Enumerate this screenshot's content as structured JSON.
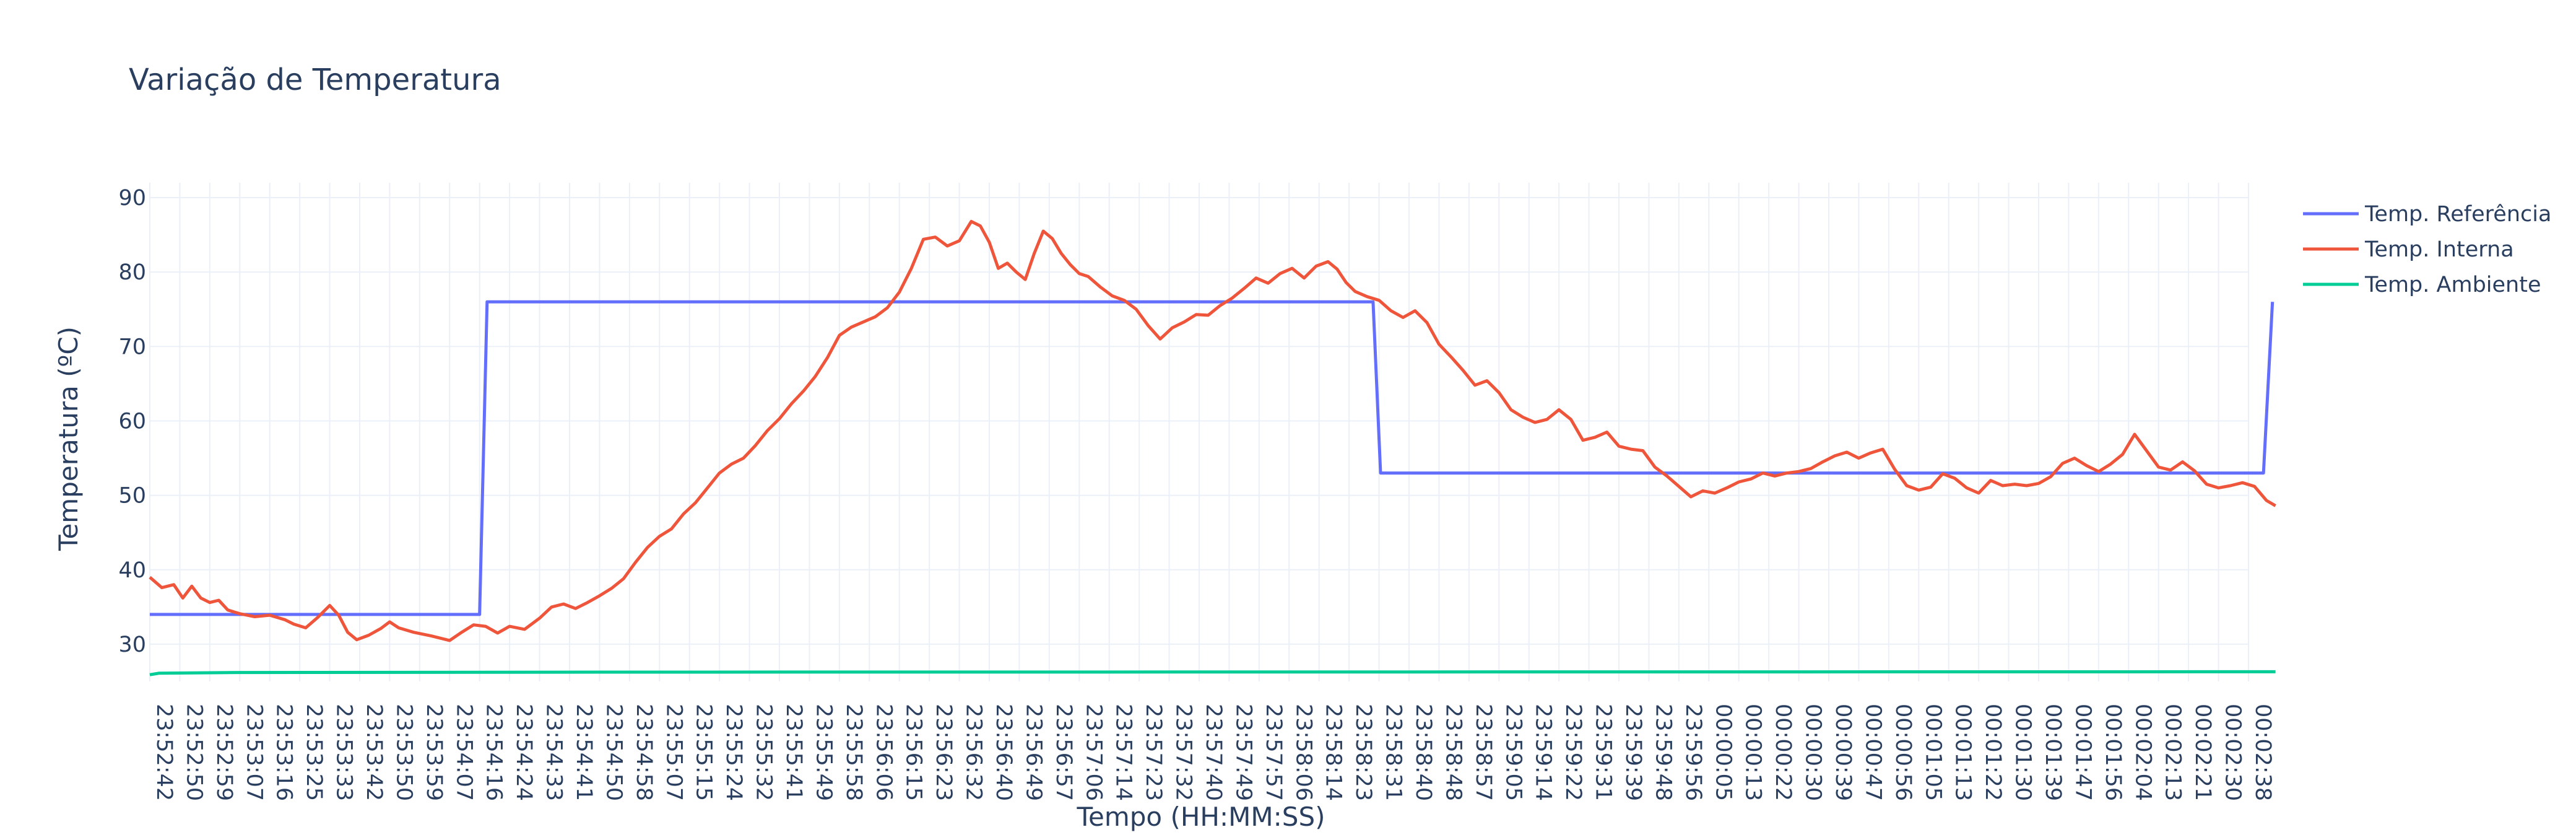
{
  "colors": {
    "background": "#ffffff",
    "grid": "#ebf0f8",
    "text": "#2a3f5f",
    "series": [
      "#636efa",
      "#ef553b",
      "#00cc96"
    ]
  },
  "chart_data": {
    "type": "line",
    "title": "Variação de Temperatura",
    "xlabel": "Tempo (HH:MM:SS)",
    "ylabel": "Temperatura (ºC)",
    "ylim": [
      25,
      92
    ],
    "yticks": [
      30,
      40,
      50,
      60,
      70,
      80,
      90
    ],
    "grid": true,
    "legend_position": "top-right",
    "x_ticks": [
      "23:52:42",
      "23:52:50",
      "23:52:59",
      "23:53:07",
      "23:53:16",
      "23:53:25",
      "23:53:33",
      "23:53:42",
      "23:53:50",
      "23:53:59",
      "23:54:07",
      "23:54:16",
      "23:54:24",
      "23:54:33",
      "23:54:41",
      "23:54:50",
      "23:54:58",
      "23:55:07",
      "23:55:15",
      "23:55:24",
      "23:55:32",
      "23:55:41",
      "23:55:49",
      "23:55:58",
      "23:56:06",
      "23:56:15",
      "23:56:23",
      "23:56:32",
      "23:56:40",
      "23:56:49",
      "23:56:57",
      "23:57:06",
      "23:57:14",
      "23:57:23",
      "23:57:32",
      "23:57:40",
      "23:57:49",
      "23:57:57",
      "23:58:06",
      "23:58:14",
      "23:58:23",
      "23:58:31",
      "23:58:40",
      "23:58:48",
      "23:58:57",
      "23:59:05",
      "23:59:14",
      "23:59:22",
      "23:59:31",
      "23:59:39",
      "23:59:48",
      "23:59:56",
      "00:00:05",
      "00:00:13",
      "00:00:22",
      "00:00:30",
      "00:00:39",
      "00:00:47",
      "00:00:56",
      "00:01:05",
      "00:01:13",
      "00:01:22",
      "00:01:30",
      "00:01:39",
      "00:01:47",
      "00:01:56",
      "00:02:04",
      "00:02:13",
      "00:02:21",
      "00:02:30",
      "00:02:38"
    ],
    "series": [
      {
        "name": "Temp. Referência",
        "color": "#636efa",
        "points": [
          [
            0,
            34
          ],
          [
            11,
            34
          ],
          [
            11.25,
            76
          ],
          [
            40.8,
            76
          ],
          [
            41.05,
            53
          ],
          [
            70.5,
            53
          ],
          [
            70.8,
            76
          ]
        ]
      },
      {
        "name": "Temp. Interna",
        "color": "#ef553b",
        "points": [
          [
            0,
            39
          ],
          [
            0.4,
            37.6
          ],
          [
            0.8,
            38
          ],
          [
            1.1,
            36.2
          ],
          [
            1.4,
            37.8
          ],
          [
            1.7,
            36.2
          ],
          [
            2,
            35.6
          ],
          [
            2.3,
            35.9
          ],
          [
            2.6,
            34.6
          ],
          [
            3,
            34.1
          ],
          [
            3.5,
            33.7
          ],
          [
            4,
            33.9
          ],
          [
            4.5,
            33.3
          ],
          [
            4.8,
            32.7
          ],
          [
            5.2,
            32.2
          ],
          [
            5.6,
            33.6
          ],
          [
            6,
            35.2
          ],
          [
            6.3,
            33.9
          ],
          [
            6.6,
            31.6
          ],
          [
            6.9,
            30.6
          ],
          [
            7.3,
            31.2
          ],
          [
            7.7,
            32.1
          ],
          [
            8,
            33
          ],
          [
            8.3,
            32.2
          ],
          [
            8.8,
            31.6
          ],
          [
            9.4,
            31.1
          ],
          [
            10,
            30.5
          ],
          [
            10.4,
            31.6
          ],
          [
            10.8,
            32.6
          ],
          [
            11.2,
            32.4
          ],
          [
            11.6,
            31.5
          ],
          [
            12,
            32.4
          ],
          [
            12.5,
            32
          ],
          [
            13,
            33.5
          ],
          [
            13.4,
            35
          ],
          [
            13.8,
            35.4
          ],
          [
            14.2,
            34.8
          ],
          [
            14.6,
            35.6
          ],
          [
            15,
            36.5
          ],
          [
            15.4,
            37.5
          ],
          [
            15.8,
            38.8
          ],
          [
            16.2,
            41
          ],
          [
            16.6,
            43
          ],
          [
            17,
            44.5
          ],
          [
            17.4,
            45.5
          ],
          [
            17.8,
            47.5
          ],
          [
            18.2,
            49
          ],
          [
            18.6,
            51
          ],
          [
            19,
            53
          ],
          [
            19.4,
            54.2
          ],
          [
            19.8,
            55
          ],
          [
            20.2,
            56.7
          ],
          [
            20.6,
            58.7
          ],
          [
            21,
            60.3
          ],
          [
            21.4,
            62.3
          ],
          [
            21.8,
            64
          ],
          [
            22.2,
            66
          ],
          [
            22.6,
            68.5
          ],
          [
            23,
            71.5
          ],
          [
            23.4,
            72.6
          ],
          [
            23.8,
            73.3
          ],
          [
            24.2,
            74
          ],
          [
            24.6,
            75.2
          ],
          [
            25,
            77.3
          ],
          [
            25.4,
            80.5
          ],
          [
            25.8,
            84.4
          ],
          [
            26.2,
            84.7
          ],
          [
            26.6,
            83.5
          ],
          [
            27,
            84.2
          ],
          [
            27.4,
            86.8
          ],
          [
            27.7,
            86.2
          ],
          [
            28,
            84
          ],
          [
            28.3,
            80.5
          ],
          [
            28.6,
            81.2
          ],
          [
            28.9,
            80
          ],
          [
            29.2,
            79
          ],
          [
            29.5,
            82.5
          ],
          [
            29.8,
            85.5
          ],
          [
            30.1,
            84.5
          ],
          [
            30.4,
            82.5
          ],
          [
            30.7,
            81
          ],
          [
            31,
            79.8
          ],
          [
            31.3,
            79.4
          ],
          [
            31.7,
            78
          ],
          [
            32.1,
            76.8
          ],
          [
            32.5,
            76.2
          ],
          [
            32.9,
            75
          ],
          [
            33.3,
            72.8
          ],
          [
            33.7,
            71
          ],
          [
            34.1,
            72.5
          ],
          [
            34.5,
            73.3
          ],
          [
            34.9,
            74.3
          ],
          [
            35.3,
            74.2
          ],
          [
            35.7,
            75.5
          ],
          [
            36.1,
            76.5
          ],
          [
            36.5,
            77.8
          ],
          [
            36.9,
            79.2
          ],
          [
            37.3,
            78.5
          ],
          [
            37.7,
            79.8
          ],
          [
            38.1,
            80.5
          ],
          [
            38.5,
            79.2
          ],
          [
            38.9,
            80.8
          ],
          [
            39.3,
            81.4
          ],
          [
            39.6,
            80.4
          ],
          [
            39.9,
            78.6
          ],
          [
            40.2,
            77.4
          ],
          [
            40.6,
            76.7
          ],
          [
            41,
            76.2
          ],
          [
            41.4,
            74.8
          ],
          [
            41.8,
            73.9
          ],
          [
            42.2,
            74.8
          ],
          [
            42.6,
            73.2
          ],
          [
            43,
            70.3
          ],
          [
            43.4,
            68.6
          ],
          [
            43.8,
            66.8
          ],
          [
            44.2,
            64.8
          ],
          [
            44.6,
            65.4
          ],
          [
            45,
            63.8
          ],
          [
            45.4,
            61.5
          ],
          [
            45.8,
            60.5
          ],
          [
            46.2,
            59.8
          ],
          [
            46.6,
            60.2
          ],
          [
            47,
            61.5
          ],
          [
            47.4,
            60.2
          ],
          [
            47.8,
            57.4
          ],
          [
            48.2,
            57.8
          ],
          [
            48.6,
            58.5
          ],
          [
            49,
            56.6
          ],
          [
            49.4,
            56.2
          ],
          [
            49.8,
            56
          ],
          [
            50.2,
            53.8
          ],
          [
            50.6,
            52.6
          ],
          [
            51,
            51.2
          ],
          [
            51.4,
            49.8
          ],
          [
            51.8,
            50.6
          ],
          [
            52.2,
            50.3
          ],
          [
            52.6,
            51
          ],
          [
            53,
            51.8
          ],
          [
            53.4,
            52.2
          ],
          [
            53.8,
            53
          ],
          [
            54.2,
            52.6
          ],
          [
            54.6,
            53
          ],
          [
            55,
            53.2
          ],
          [
            55.4,
            53.6
          ],
          [
            55.8,
            54.5
          ],
          [
            56.2,
            55.3
          ],
          [
            56.6,
            55.8
          ],
          [
            57,
            55
          ],
          [
            57.4,
            55.7
          ],
          [
            57.8,
            56.2
          ],
          [
            58.2,
            53.5
          ],
          [
            58.6,
            51.3
          ],
          [
            59,
            50.7
          ],
          [
            59.4,
            51.1
          ],
          [
            59.8,
            52.9
          ],
          [
            60.2,
            52.3
          ],
          [
            60.6,
            51
          ],
          [
            61,
            50.3
          ],
          [
            61.4,
            52
          ],
          [
            61.8,
            51.3
          ],
          [
            62.2,
            51.5
          ],
          [
            62.6,
            51.3
          ],
          [
            63,
            51.6
          ],
          [
            63.4,
            52.5
          ],
          [
            63.8,
            54.3
          ],
          [
            64.2,
            55
          ],
          [
            64.6,
            54
          ],
          [
            65,
            53.2
          ],
          [
            65.4,
            54.2
          ],
          [
            65.8,
            55.5
          ],
          [
            66.2,
            58.2
          ],
          [
            66.6,
            56
          ],
          [
            67,
            53.8
          ],
          [
            67.4,
            53.4
          ],
          [
            67.8,
            54.5
          ],
          [
            68.2,
            53.3
          ],
          [
            68.6,
            51.5
          ],
          [
            69,
            51
          ],
          [
            69.4,
            51.3
          ],
          [
            69.8,
            51.7
          ],
          [
            70.2,
            51.2
          ],
          [
            70.6,
            49.3
          ],
          [
            70.9,
            48.6
          ]
        ]
      },
      {
        "name": "Temp. Ambiente",
        "color": "#00cc96",
        "points": [
          [
            0,
            25.9
          ],
          [
            0.3,
            26.1
          ],
          [
            3,
            26.2
          ],
          [
            15,
            26.25
          ],
          [
            70.9,
            26.3
          ]
        ]
      }
    ]
  }
}
